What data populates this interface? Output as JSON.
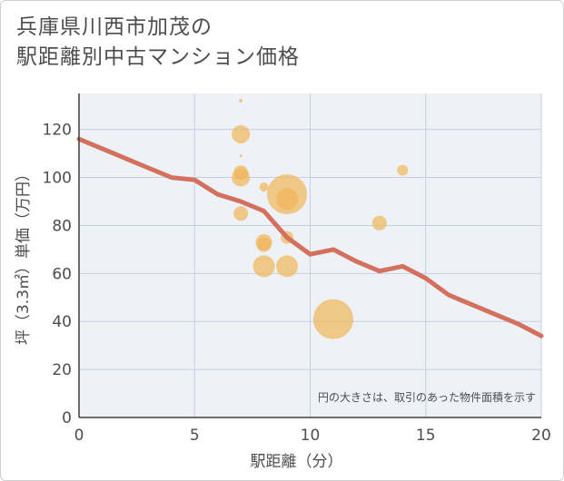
{
  "title_lines": [
    "兵庫県川西市加茂の",
    "駅距離別中古マンション価格"
  ],
  "note": "円の大きさは、取引のあった物件面積を示す",
  "colors": {
    "plot_bg": "#eef2f7",
    "grid": "#c4cfe0",
    "bubble": "#f0b55a",
    "line": "#d4705e",
    "text": "#4d4d4d"
  },
  "chart_data": {
    "type": "scatter",
    "xlabel": "駅距離（分）",
    "ylabel": "坪（3.3㎡）単価（万円）",
    "xlim": [
      0,
      20
    ],
    "ylim": [
      0,
      135
    ],
    "xticks": [
      0,
      5,
      10,
      15,
      20
    ],
    "yticks": [
      0,
      20,
      40,
      60,
      80,
      100,
      120
    ],
    "grid": true,
    "bubbles": [
      {
        "x": 7,
        "y": 132,
        "size": 2
      },
      {
        "x": 7,
        "y": 118,
        "size": 10
      },
      {
        "x": 7,
        "y": 109,
        "size": 1
      },
      {
        "x": 7,
        "y": 102,
        "size": 8
      },
      {
        "x": 7,
        "y": 100,
        "size": 10
      },
      {
        "x": 7,
        "y": 85,
        "size": 8
      },
      {
        "x": 8,
        "y": 96,
        "size": 5
      },
      {
        "x": 8,
        "y": 73,
        "size": 9
      },
      {
        "x": 8,
        "y": 72,
        "size": 8
      },
      {
        "x": 8,
        "y": 63,
        "size": 12
      },
      {
        "x": 9,
        "y": 93,
        "size": 22
      },
      {
        "x": 9,
        "y": 91,
        "size": 12
      },
      {
        "x": 9,
        "y": 75,
        "size": 7
      },
      {
        "x": 9,
        "y": 63,
        "size": 12
      },
      {
        "x": 11,
        "y": 41,
        "size": 22
      },
      {
        "x": 13,
        "y": 81,
        "size": 8
      },
      {
        "x": 14,
        "y": 103,
        "size": 6
      }
    ],
    "trend": [
      {
        "x": 0,
        "y": 116
      },
      {
        "x": 1,
        "y": 112
      },
      {
        "x": 2,
        "y": 108
      },
      {
        "x": 3,
        "y": 104
      },
      {
        "x": 4,
        "y": 100
      },
      {
        "x": 5,
        "y": 99
      },
      {
        "x": 6,
        "y": 93
      },
      {
        "x": 7,
        "y": 90
      },
      {
        "x": 8,
        "y": 86
      },
      {
        "x": 9,
        "y": 75
      },
      {
        "x": 10,
        "y": 68
      },
      {
        "x": 11,
        "y": 70
      },
      {
        "x": 12,
        "y": 65
      },
      {
        "x": 13,
        "y": 61
      },
      {
        "x": 14,
        "y": 63
      },
      {
        "x": 15,
        "y": 58
      },
      {
        "x": 16,
        "y": 51
      },
      {
        "x": 17,
        "y": 47
      },
      {
        "x": 18,
        "y": 43
      },
      {
        "x": 19,
        "y": 39
      },
      {
        "x": 20,
        "y": 34
      }
    ]
  }
}
